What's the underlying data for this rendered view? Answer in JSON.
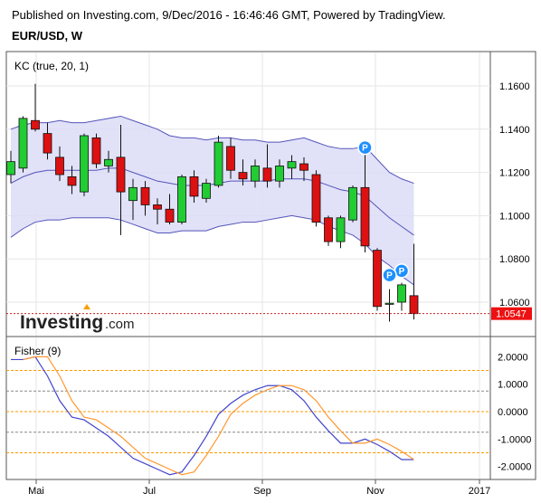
{
  "header": {
    "published": "Published on Investing.com, 9/Dec/2016 - 16:46:46 GMT, Powered by TradingView.",
    "symbol": "EUR/USD, W"
  },
  "logo": {
    "brand": "Investing",
    "suffix": ".com"
  },
  "colors": {
    "up": "#22cc33",
    "down": "#dd1111",
    "band_fill": "#dcdcf7",
    "band_line": "#5555bb",
    "fisher": "#4444cc",
    "trigger": "#ff9933",
    "price_label": "#ee1111",
    "marker": "#1e90ff"
  },
  "chart_data": [
    {
      "type": "candlestick",
      "indicator_label": "KC (true, 20, 1)",
      "price_axis": {
        "ticks": [
          "1.1600",
          "1.1400",
          "1.1200",
          "1.1000",
          "1.0800",
          "1.0600"
        ],
        "ylim": [
          1.05,
          1.17
        ]
      },
      "current_price": {
        "label": "1.0547",
        "value": 1.0547
      },
      "x_labels": [
        "Mai",
        "Jul",
        "Sep",
        "Nov",
        "2017"
      ],
      "candles": [
        {
          "o": 1.119,
          "h": 1.13,
          "l": 1.115,
          "c": 1.125
        },
        {
          "o": 1.122,
          "h": 1.146,
          "l": 1.12,
          "c": 1.145
        },
        {
          "o": 1.144,
          "h": 1.161,
          "l": 1.139,
          "c": 1.14
        },
        {
          "o": 1.138,
          "h": 1.143,
          "l": 1.126,
          "c": 1.129
        },
        {
          "o": 1.127,
          "h": 1.132,
          "l": 1.116,
          "c": 1.119
        },
        {
          "o": 1.118,
          "h": 1.123,
          "l": 1.11,
          "c": 1.114
        },
        {
          "o": 1.111,
          "h": 1.138,
          "l": 1.109,
          "c": 1.137
        },
        {
          "o": 1.136,
          "h": 1.138,
          "l": 1.122,
          "c": 1.124
        },
        {
          "o": 1.123,
          "h": 1.13,
          "l": 1.12,
          "c": 1.126
        },
        {
          "o": 1.127,
          "h": 1.142,
          "l": 1.091,
          "c": 1.111
        },
        {
          "o": 1.107,
          "h": 1.117,
          "l": 1.098,
          "c": 1.113
        },
        {
          "o": 1.113,
          "h": 1.116,
          "l": 1.1,
          "c": 1.105
        },
        {
          "o": 1.105,
          "h": 1.108,
          "l": 1.096,
          "c": 1.103
        },
        {
          "o": 1.103,
          "h": 1.11,
          "l": 1.096,
          "c": 1.097
        },
        {
          "o": 1.097,
          "h": 1.119,
          "l": 1.096,
          "c": 1.118
        },
        {
          "o": 1.118,
          "h": 1.121,
          "l": 1.106,
          "c": 1.109
        },
        {
          "o": 1.108,
          "h": 1.117,
          "l": 1.106,
          "c": 1.115
        },
        {
          "o": 1.114,
          "h": 1.137,
          "l": 1.113,
          "c": 1.134
        },
        {
          "o": 1.132,
          "h": 1.136,
          "l": 1.117,
          "c": 1.121
        },
        {
          "o": 1.12,
          "h": 1.126,
          "l": 1.114,
          "c": 1.117
        },
        {
          "o": 1.116,
          "h": 1.126,
          "l": 1.113,
          "c": 1.123
        },
        {
          "o": 1.122,
          "h": 1.133,
          "l": 1.113,
          "c": 1.116
        },
        {
          "o": 1.116,
          "h": 1.126,
          "l": 1.113,
          "c": 1.123
        },
        {
          "o": 1.122,
          "h": 1.128,
          "l": 1.117,
          "c": 1.125
        },
        {
          "o": 1.124,
          "h": 1.127,
          "l": 1.116,
          "c": 1.121
        },
        {
          "o": 1.119,
          "h": 1.121,
          "l": 1.095,
          "c": 1.097
        },
        {
          "o": 1.099,
          "h": 1.1,
          "l": 1.086,
          "c": 1.088
        },
        {
          "o": 1.088,
          "h": 1.1,
          "l": 1.085,
          "c": 1.099
        },
        {
          "o": 1.098,
          "h": 1.114,
          "l": 1.097,
          "c": 1.113
        },
        {
          "o": 1.113,
          "h": 1.13,
          "l": 1.083,
          "c": 1.086
        },
        {
          "o": 1.084,
          "h": 1.085,
          "l": 1.056,
          "c": 1.058
        },
        {
          "o": 1.059,
          "h": 1.066,
          "l": 1.051,
          "c": 1.0595
        },
        {
          "o": 1.06,
          "h": 1.069,
          "l": 1.056,
          "c": 1.068
        },
        {
          "o": 1.063,
          "h": 1.087,
          "l": 1.052,
          "c": 1.0547
        }
      ],
      "keltner": {
        "upper": [
          1.14,
          1.142,
          1.143,
          1.143,
          1.144,
          1.143,
          1.143,
          1.144,
          1.145,
          1.146,
          1.144,
          1.142,
          1.14,
          1.137,
          1.136,
          1.136,
          1.135,
          1.136,
          1.136,
          1.135,
          1.135,
          1.134,
          1.134,
          1.135,
          1.136,
          1.134,
          1.132,
          1.131,
          1.131,
          1.132,
          1.126,
          1.12,
          1.117,
          1.115
        ],
        "middle": [
          1.115,
          1.118,
          1.12,
          1.121,
          1.121,
          1.121,
          1.121,
          1.121,
          1.122,
          1.122,
          1.12,
          1.118,
          1.116,
          1.115,
          1.114,
          1.114,
          1.114,
          1.115,
          1.116,
          1.116,
          1.116,
          1.116,
          1.117,
          1.117,
          1.117,
          1.116,
          1.114,
          1.112,
          1.111,
          1.109,
          1.104,
          1.099,
          1.095,
          1.091
        ],
        "lower": [
          1.09,
          1.094,
          1.097,
          1.098,
          1.098,
          1.099,
          1.099,
          1.099,
          1.099,
          1.098,
          1.096,
          1.094,
          1.092,
          1.092,
          1.093,
          1.093,
          1.093,
          1.095,
          1.096,
          1.097,
          1.097,
          1.098,
          1.099,
          1.1,
          1.099,
          1.098,
          1.095,
          1.093,
          1.091,
          1.087,
          1.081,
          1.077,
          1.072,
          1.068
        ]
      },
      "markers": [
        {
          "index": 29,
          "price": 1.1315,
          "label": "P"
        },
        {
          "index": 32,
          "price": 1.0745,
          "label": "P"
        },
        {
          "index": 31,
          "price": 1.0725,
          "label": "P"
        }
      ]
    },
    {
      "type": "line",
      "indicator_label": "Fisher (9)",
      "axis": {
        "ticks": [
          "2.0000",
          "1.0000",
          "0.0000",
          "-1.0000",
          "-2.0000"
        ],
        "ylim": [
          -2.5,
          2.5
        ]
      },
      "levels": [
        {
          "value": 1.5,
          "color": "#ff9900"
        },
        {
          "value": 0.75,
          "color": "#888888"
        },
        {
          "value": 0.0,
          "color": "#ff9900"
        },
        {
          "value": -0.75,
          "color": "#888888"
        },
        {
          "value": -1.5,
          "color": "#ff9900"
        }
      ],
      "series": [
        {
          "role": "fisher",
          "values": [
            1.9,
            1.9,
            2.0,
            1.3,
            0.4,
            -0.2,
            -0.3,
            -0.6,
            -0.9,
            -1.3,
            -1.7,
            -1.9,
            -2.1,
            -2.3,
            -2.2,
            -1.6,
            -0.9,
            -0.1,
            0.3,
            0.6,
            0.8,
            0.95,
            0.95,
            0.8,
            0.4,
            -0.2,
            -0.7,
            -1.15,
            -1.15,
            -1.0,
            -1.2,
            -1.45,
            -1.75,
            -1.75
          ]
        },
        {
          "role": "trigger",
          "values": [
            null,
            1.9,
            2.0,
            2.0,
            1.3,
            0.4,
            -0.2,
            -0.3,
            -0.6,
            -0.9,
            -1.3,
            -1.7,
            -1.9,
            -2.1,
            -2.3,
            -2.2,
            -1.6,
            -0.9,
            -0.1,
            0.3,
            0.6,
            0.8,
            0.95,
            0.95,
            0.8,
            0.4,
            -0.2,
            -0.7,
            -1.15,
            -1.15,
            -1.0,
            -1.2,
            -1.45,
            -1.75
          ]
        }
      ]
    }
  ]
}
